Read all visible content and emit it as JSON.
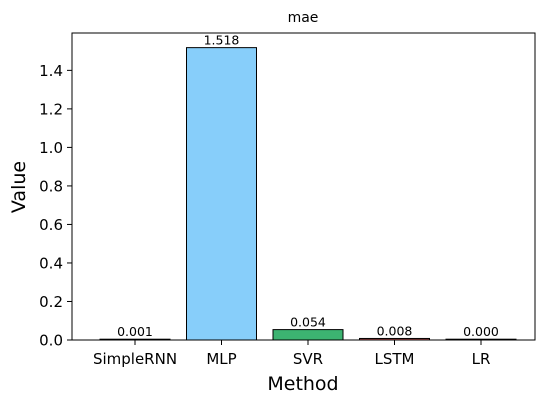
{
  "chart_data": {
    "type": "bar",
    "title": "mae",
    "xlabel": "Method",
    "ylabel": "Value",
    "categories": [
      "SimpleRNN",
      "MLP",
      "SVR",
      "LSTM",
      "LR"
    ],
    "values": [
      0.001,
      1.518,
      0.054,
      0.008,
      0.0
    ],
    "value_labels": [
      "0.001",
      "1.518",
      "0.054",
      "0.008",
      "0.000"
    ],
    "colors": [
      "#8b4513",
      "#87cefa",
      "#3cb371",
      "#cd5c5c",
      "#808080"
    ],
    "ylim": [
      0,
      1.594
    ],
    "yticks": [
      0.0,
      0.2,
      0.4,
      0.6,
      0.8,
      1.0,
      1.2,
      1.4
    ],
    "ytick_labels": [
      "0.0",
      "0.2",
      "0.4",
      "0.6",
      "0.8",
      "1.0",
      "1.2",
      "1.4"
    ],
    "grid": false,
    "legend": "none"
  }
}
